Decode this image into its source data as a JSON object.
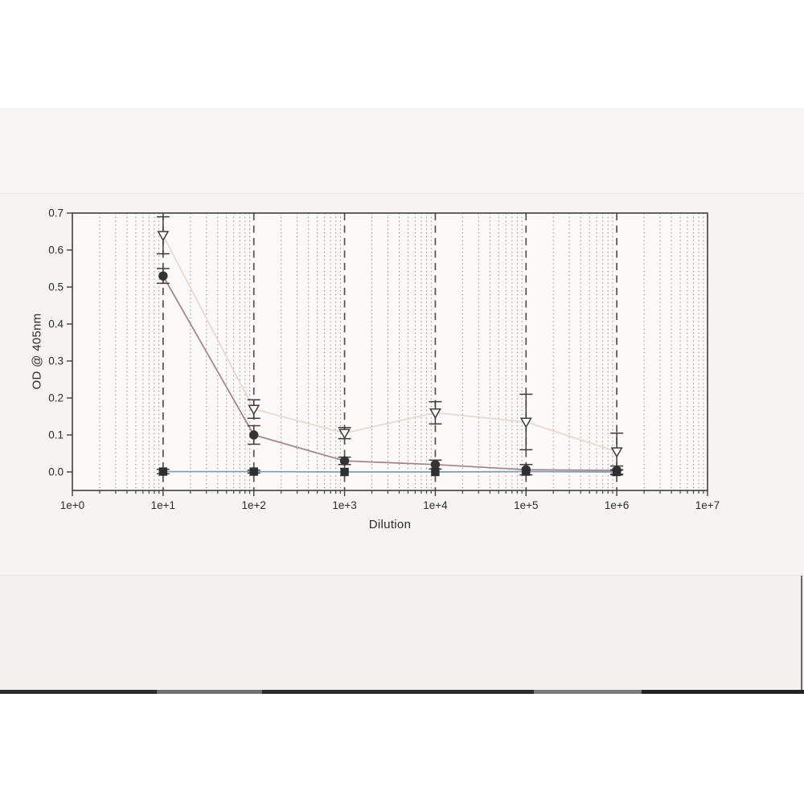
{
  "page": {
    "background_color": "#ffffff",
    "paper_color": "#f5f4f0",
    "plot_area_color": "#fbfaf8",
    "scan_strip_color": "#2b2b2b"
  },
  "chart_data": {
    "type": "line",
    "title": "",
    "xlabel": "Dilution",
    "ylabel": "OD @ 405nm",
    "x_scale": "log",
    "xlim": [
      1,
      10000000
    ],
    "ylim": [
      -0.05,
      0.7
    ],
    "x_tick_values": [
      1,
      10,
      100,
      1000,
      10000,
      100000,
      1000000,
      10000000
    ],
    "x_tick_labels": [
      "1e+0",
      "1e+1",
      "1e+2",
      "1e+3",
      "1e+4",
      "1e+5",
      "1e+6",
      "1e+7"
    ],
    "y_tick_values": [
      0.0,
      0.1,
      0.2,
      0.3,
      0.4,
      0.5,
      0.6,
      0.7
    ],
    "y_tick_labels": [
      "0.0",
      "0.1",
      "0.2",
      "0.3",
      "0.4",
      "0.5",
      "0.6",
      "0.7"
    ],
    "grid": {
      "major_x_values": [
        10,
        100,
        1000,
        10000,
        100000,
        1000000
      ],
      "major_style": "dashed",
      "minor_multiples_per_decade": [
        2,
        3,
        4,
        5,
        6,
        7,
        8,
        9
      ],
      "minor_style": "dotted",
      "major_color": "#515151",
      "minor_color": "#7d7d7d"
    },
    "axis_color": "#3f3f3f",
    "error_bar_color": "#3d3d3d",
    "series": [
      {
        "name": "series-triangle-down",
        "marker": "triangle-down-open",
        "line_color": "#ead6ce",
        "marker_stroke": "#3d3d3d",
        "marker_fill": "#fbfaf8",
        "x": [
          10,
          100,
          1000,
          10000,
          100000,
          1000000
        ],
        "y": [
          0.64,
          0.17,
          0.105,
          0.16,
          0.135,
          0.055
        ],
        "yerr": [
          0.05,
          0.025,
          0.015,
          0.03,
          0.075,
          0.05
        ]
      },
      {
        "name": "series-circle",
        "marker": "circle-filled",
        "line_color": "#a57f89",
        "marker_stroke": "#343434",
        "marker_fill": "#343434",
        "x": [
          10,
          100,
          1000,
          10000,
          100000,
          1000000
        ],
        "y": [
          0.53,
          0.1,
          0.03,
          0.02,
          0.006,
          0.004
        ],
        "yerr": [
          0.02,
          0.025,
          0.01,
          0.012,
          0.014,
          0.012
        ]
      },
      {
        "name": "series-square",
        "marker": "square-filled",
        "line_color": "#7e9db8",
        "marker_stroke": "#2f2f2f",
        "marker_fill": "#2f2f2f",
        "x": [
          10,
          100,
          1000,
          10000,
          100000,
          1000000
        ],
        "y": [
          0.001,
          0.001,
          0.0,
          0.0,
          0.001,
          0.0
        ],
        "yerr": [
          0.006,
          0.004,
          0,
          0,
          0,
          0.006
        ]
      }
    ]
  }
}
